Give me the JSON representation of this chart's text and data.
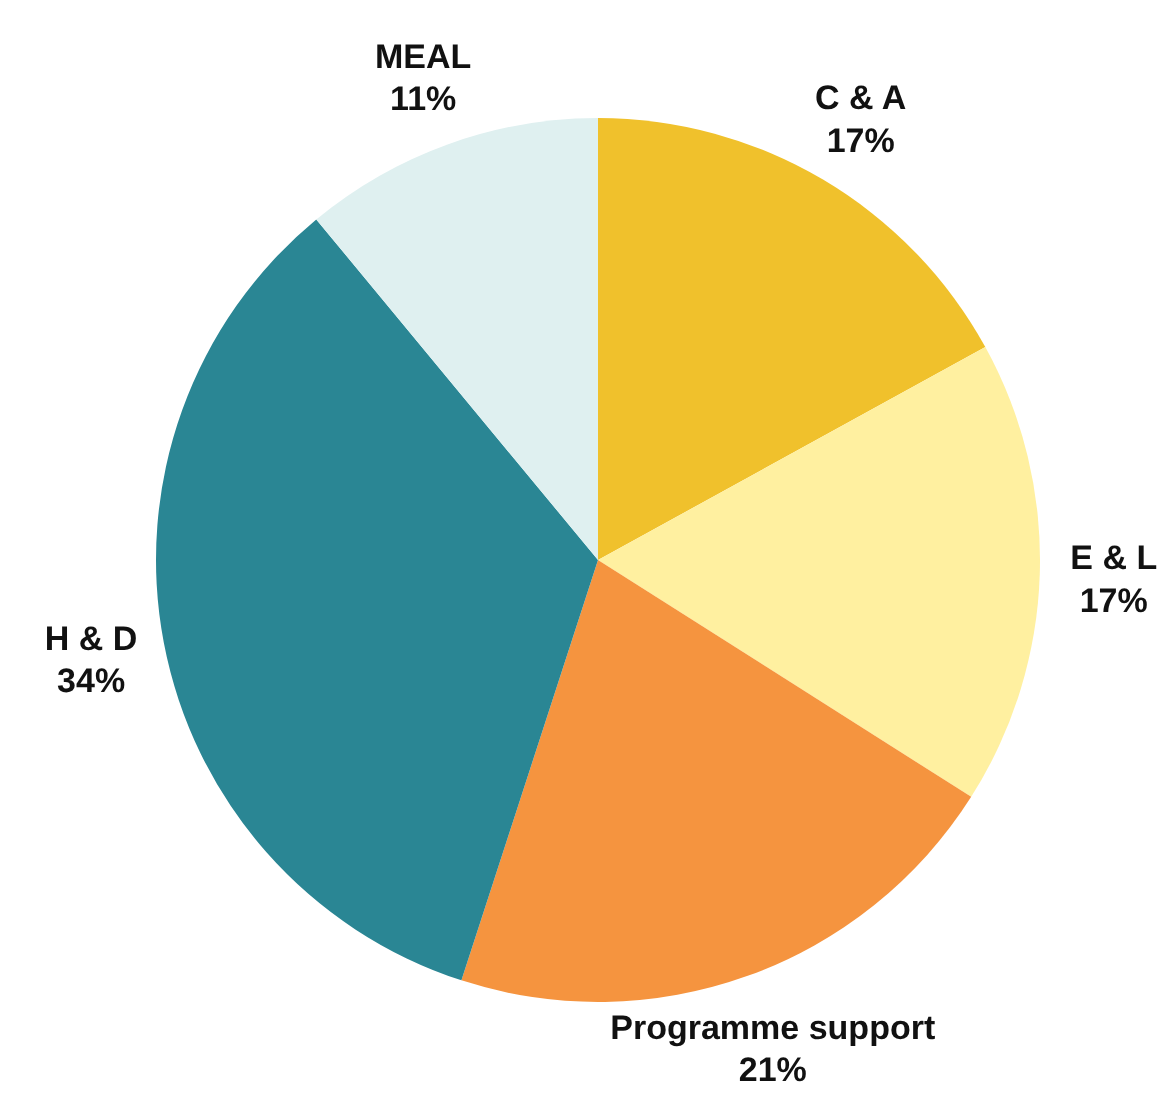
{
  "chart_data": {
    "type": "pie",
    "categories": [
      "C & A",
      "E & L",
      "Programme support",
      "H & D",
      "MEAL"
    ],
    "values": [
      17,
      17,
      21,
      34,
      11
    ],
    "colors": [
      "#f0c12c",
      "#fff0a0",
      "#f5943f",
      "#2a8694",
      "#dff0f0"
    ],
    "value_labels": [
      "17%",
      "17%",
      "21%",
      "34%",
      "11%"
    ]
  }
}
